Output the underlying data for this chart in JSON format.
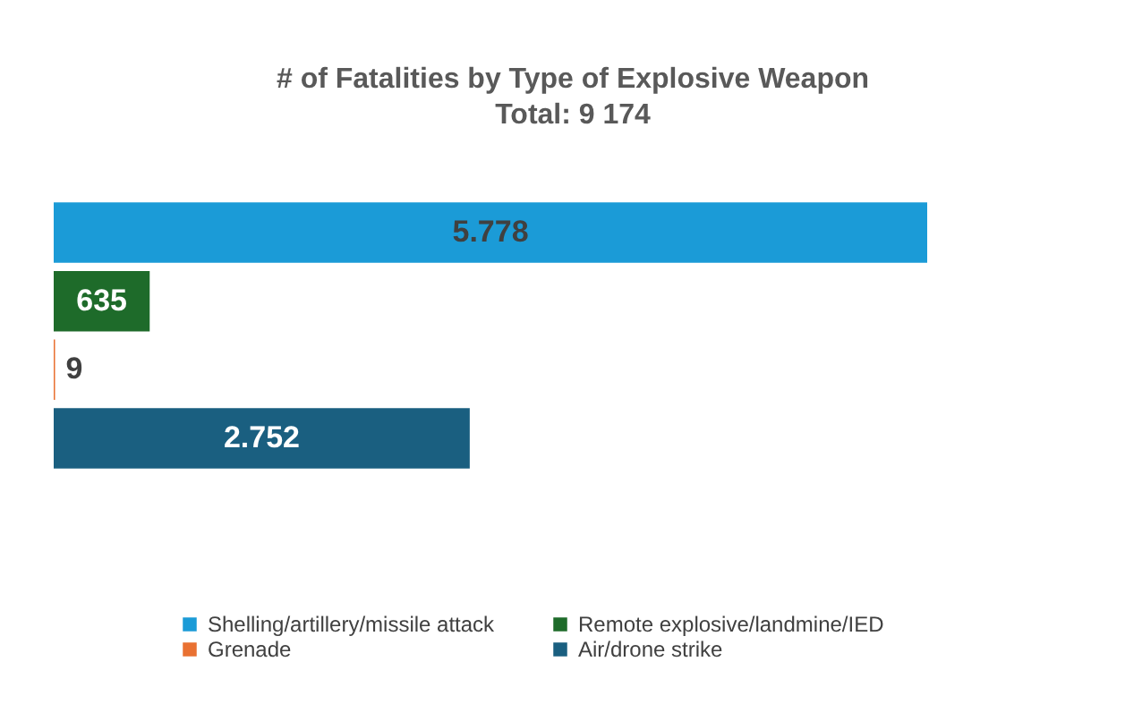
{
  "chart_data": {
    "type": "bar",
    "orientation": "horizontal",
    "title": "# of Fatalities by Type of Explosive Weapon",
    "subtitle": "Total: 9 174",
    "categories": [
      null
    ],
    "series": [
      {
        "name": "Shelling/artillery/missile attack",
        "color": "#1b9bd7",
        "values": [
          5778
        ],
        "value_labels": [
          "5.778"
        ]
      },
      {
        "name": "Remote explosive/landmine/IED",
        "color": "#1e6b2a",
        "values": [
          635
        ],
        "value_labels": [
          "635"
        ]
      },
      {
        "name": "Grenade",
        "color": "#e97132",
        "values": [
          9
        ],
        "value_labels": [
          "9"
        ]
      },
      {
        "name": "Air/drone strike",
        "color": "#1a5f80",
        "values": [
          2752
        ],
        "value_labels": [
          "2.752"
        ]
      }
    ],
    "legend": "bottom",
    "grid": false
  }
}
